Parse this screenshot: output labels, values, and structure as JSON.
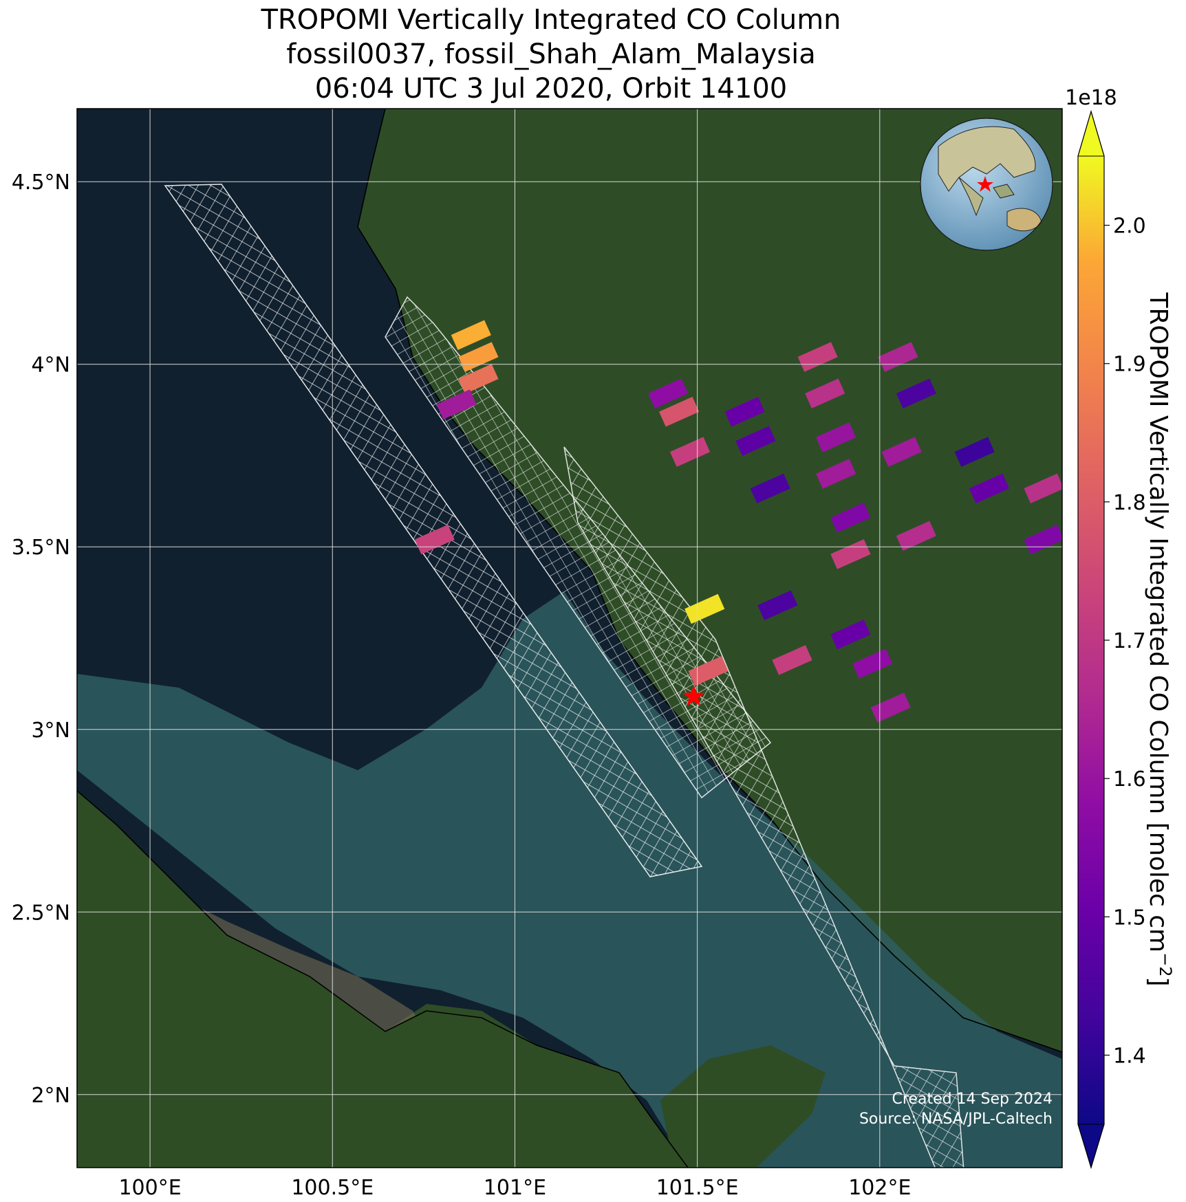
{
  "title": {
    "line1": "TROPOMI Vertically Integrated CO Column",
    "line2": "fossil0037, fossil_Shah_Alam_Malaysia",
    "line3": "06:04 UTC 3 Jul 2020, Orbit 14100"
  },
  "map": {
    "lon_range": [
      99.8,
      102.5
    ],
    "lat_range": [
      1.8,
      4.7
    ],
    "lon_ticks": [
      {
        "value": 100.0,
        "label": "100°E"
      },
      {
        "value": 100.5,
        "label": "100.5°E"
      },
      {
        "value": 101.0,
        "label": "101°E"
      },
      {
        "value": 101.5,
        "label": "101.5°E"
      },
      {
        "value": 102.0,
        "label": "102°E"
      }
    ],
    "lat_ticks": [
      {
        "value": 2.0,
        "label": "2°N"
      },
      {
        "value": 2.5,
        "label": "2.5°N"
      },
      {
        "value": 3.0,
        "label": "3°N"
      },
      {
        "value": 3.5,
        "label": "3.5°N"
      },
      {
        "value": 4.0,
        "label": "4°N"
      },
      {
        "value": 4.5,
        "label": "4.5°N"
      }
    ],
    "grid": true,
    "site_marker": {
      "name": "Shah Alam",
      "lon": 101.49,
      "lat": 3.09,
      "color": "#ff0000"
    },
    "credit_line1": "Created 14 Sep 2024",
    "credit_line2": "Source: NASA/JPL-Caltech",
    "inset_globe": "globe-icon with site marker",
    "colors": {
      "sea": "#0f1e2c",
      "land": "#2d4a25",
      "grid": "#d8d8d8",
      "target_outline": "#ffffff"
    }
  },
  "colorbar": {
    "label": "TROPOMI Vertically Integrated CO Column [molec cm",
    "label_superscript": "−2",
    "label_end": "]",
    "multiplier": "1e18",
    "range": [
      1.35,
      2.05
    ],
    "colormap": "plasma",
    "extend": "both",
    "ticks": [
      {
        "value": 1.4,
        "label": "1.4"
      },
      {
        "value": 1.5,
        "label": "1.5"
      },
      {
        "value": 1.6,
        "label": "1.6"
      },
      {
        "value": 1.7,
        "label": "1.7"
      },
      {
        "value": 1.8,
        "label": "1.8"
      },
      {
        "value": 1.9,
        "label": "1.9"
      },
      {
        "value": 2.0,
        "label": "2.0"
      }
    ]
  },
  "chart_data": {
    "type": "heatmap",
    "units": "molec cm^-2 (x 1e18)",
    "pixels": [
      {
        "lon": 100.88,
        "lat": 4.08,
        "value": 1.98
      },
      {
        "lon": 100.9,
        "lat": 4.02,
        "value": 1.95
      },
      {
        "lon": 100.9,
        "lat": 3.96,
        "value": 1.85
      },
      {
        "lon": 100.84,
        "lat": 3.89,
        "value": 1.62
      },
      {
        "lon": 101.42,
        "lat": 3.92,
        "value": 1.58
      },
      {
        "lon": 101.45,
        "lat": 3.87,
        "value": 1.78
      },
      {
        "lon": 101.63,
        "lat": 3.87,
        "value": 1.5
      },
      {
        "lon": 101.66,
        "lat": 3.79,
        "value": 1.48
      },
      {
        "lon": 101.83,
        "lat": 4.02,
        "value": 1.72
      },
      {
        "lon": 101.85,
        "lat": 3.92,
        "value": 1.68
      },
      {
        "lon": 101.88,
        "lat": 3.8,
        "value": 1.6
      },
      {
        "lon": 101.88,
        "lat": 3.7,
        "value": 1.62
      },
      {
        "lon": 101.92,
        "lat": 3.58,
        "value": 1.55
      },
      {
        "lon": 101.92,
        "lat": 3.48,
        "value": 1.72
      },
      {
        "lon": 102.05,
        "lat": 4.02,
        "value": 1.65
      },
      {
        "lon": 102.1,
        "lat": 3.92,
        "value": 1.45
      },
      {
        "lon": 101.48,
        "lat": 3.76,
        "value": 1.72
      },
      {
        "lon": 101.7,
        "lat": 3.66,
        "value": 1.45
      },
      {
        "lon": 102.06,
        "lat": 3.76,
        "value": 1.62
      },
      {
        "lon": 102.1,
        "lat": 3.53,
        "value": 1.67
      },
      {
        "lon": 102.26,
        "lat": 3.76,
        "value": 1.42
      },
      {
        "lon": 102.3,
        "lat": 3.66,
        "value": 1.5
      },
      {
        "lon": 102.45,
        "lat": 3.66,
        "value": 1.68
      },
      {
        "lon": 102.45,
        "lat": 3.52,
        "value": 1.55
      },
      {
        "lon": 100.78,
        "lat": 3.52,
        "value": 1.73
      },
      {
        "lon": 101.52,
        "lat": 3.33,
        "value": 2.03
      },
      {
        "lon": 101.72,
        "lat": 3.34,
        "value": 1.45
      },
      {
        "lon": 101.92,
        "lat": 3.26,
        "value": 1.5
      },
      {
        "lon": 101.53,
        "lat": 3.16,
        "value": 1.8
      },
      {
        "lon": 101.76,
        "lat": 3.19,
        "value": 1.72
      },
      {
        "lon": 101.98,
        "lat": 3.18,
        "value": 1.58
      },
      {
        "lon": 102.03,
        "lat": 3.06,
        "value": 1.62
      }
    ]
  }
}
